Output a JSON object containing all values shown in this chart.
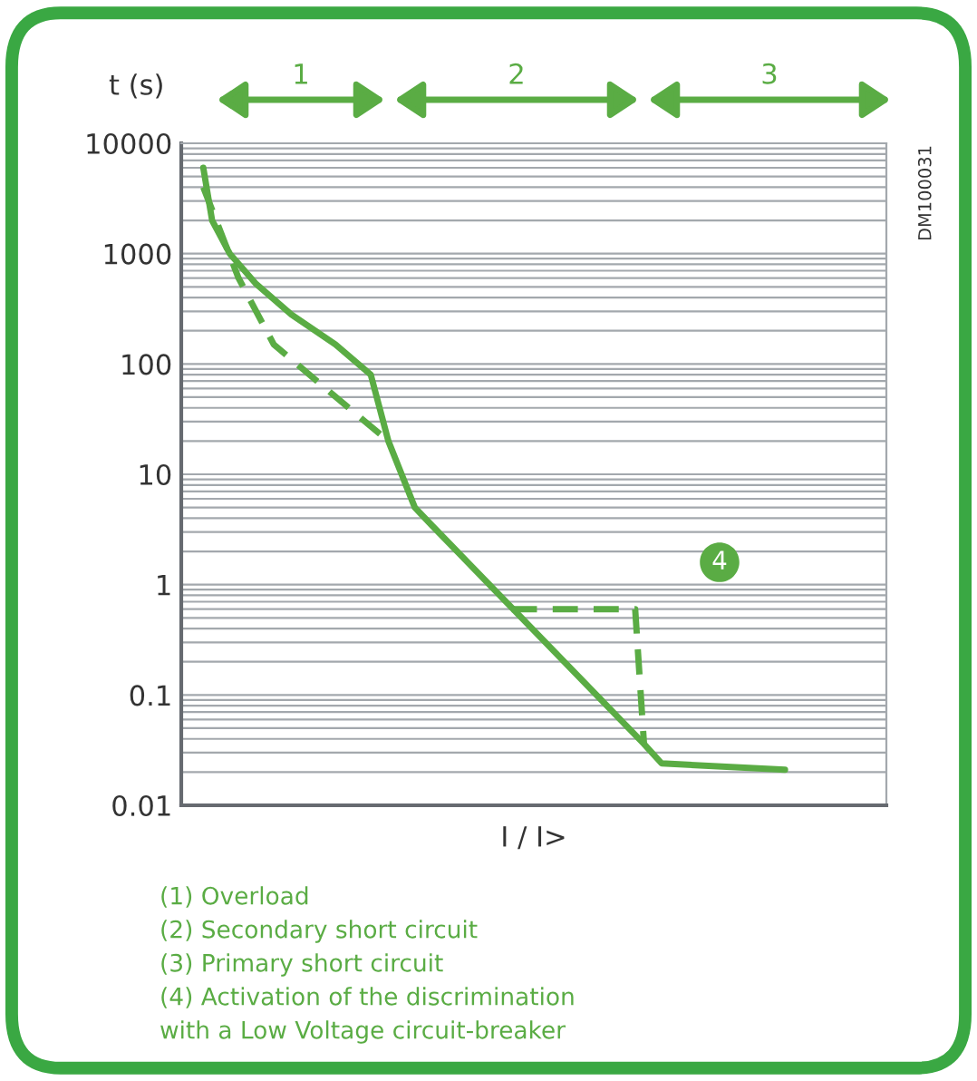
{
  "chart_data": {
    "type": "line",
    "ylabel": "t (s)",
    "xlabel": "I / I>",
    "categories": [
      null,
      null,
      null,
      null,
      null,
      null,
      null,
      null,
      null,
      null,
      null,
      null,
      null,
      null,
      null,
      null,
      null,
      null,
      null,
      null,
      null,
      null,
      null,
      null,
      null,
      null,
      null,
      null,
      null,
      null,
      null,
      null,
      null,
      null,
      null,
      null,
      null,
      null,
      null,
      null,
      null,
      null,
      null,
      null,
      null,
      null,
      null,
      null,
      null,
      null,
      null,
      null,
      null,
      null,
      null,
      null,
      null,
      null,
      null,
      null,
      null,
      null,
      null,
      null,
      null,
      null,
      null,
      null,
      null,
      null,
      null,
      null,
      null,
      null,
      null,
      null,
      null,
      null,
      null,
      null
    ],
    "log": "y",
    "ylim": [
      0.01,
      10000
    ],
    "yticks": [
      0.01,
      0.1,
      1,
      10,
      100,
      1000,
      10000
    ],
    "grid": "y",
    "tick_labels": "y",
    "series": [
      {
        "color": "#5aac44",
        "line_style": "solid",
        "values": [
          null,
          null,
          6000,
          2000,
          null,
          1000,
          null,
          null,
          530,
          null,
          null,
          null,
          280,
          null,
          null,
          null,
          null,
          150,
          null,
          null,
          null,
          80,
          null,
          20,
          null,
          null,
          5,
          null,
          3.4,
          null,
          null,
          null,
          null,
          null,
          null,
          null,
          null,
          null,
          null,
          null,
          null,
          null,
          null,
          null,
          null,
          null,
          null,
          null,
          null,
          null,
          null,
          null,
          0.036,
          null,
          0.024,
          null,
          null,
          null,
          null,
          null,
          null,
          null,
          null,
          null,
          null,
          null,
          null,
          null,
          0.021,
          null,
          null,
          null,
          null,
          null,
          null,
          null,
          null,
          null,
          null,
          null
        ]
      },
      {
        "color": "#5aac44",
        "line_style": "dashed",
        "values": [
          null,
          null,
          4000,
          null,
          null,
          null,
          600,
          null,
          null,
          null,
          150,
          null,
          null,
          null,
          null,
          null,
          null,
          null,
          null,
          37,
          null,
          null,
          null,
          20,
          null,
          null,
          null,
          null,
          null,
          null,
          null,
          null,
          null,
          null,
          null,
          null,
          null,
          null,
          null,
          null,
          null,
          null,
          null,
          null,
          null,
          null,
          null,
          null,
          null,
          null,
          null,
          null,
          null,
          null,
          null,
          null,
          null,
          null,
          null,
          null,
          null,
          null,
          null,
          null,
          null,
          null,
          null,
          null,
          null,
          null,
          null,
          null,
          null,
          null,
          null,
          null,
          null,
          null,
          null,
          null
        ]
      },
      {
        "color": "#5aac44",
        "line_style": "dashed",
        "values": [
          null,
          null,
          null,
          null,
          null,
          null,
          null,
          null,
          null,
          null,
          null,
          null,
          null,
          null,
          null,
          null,
          null,
          null,
          null,
          null,
          null,
          null,
          null,
          null,
          null,
          null,
          null,
          null,
          null,
          null,
          null,
          null,
          null,
          null,
          null,
          null,
          null,
          0.6,
          null,
          null,
          null,
          null,
          null,
          null,
          null,
          null,
          null,
          null,
          null,
          null,
          null,
          0.6,
          0.036,
          null,
          null,
          null,
          null,
          null,
          null,
          null,
          null,
          null,
          null,
          null,
          null,
          null,
          null,
          null,
          null,
          null,
          null,
          null,
          null,
          null,
          null,
          null,
          null,
          null,
          null,
          null
        ]
      }
    ],
    "annotations": [
      "1",
      "2",
      "3",
      "4",
      "DM100031",
      "(1) Overload",
      "(2) Secondary short circuit",
      "(3) Primary short circuit",
      "(4) Activation of the discrimination",
      "with a Low Voltage circuit-breaker"
    ]
  }
}
